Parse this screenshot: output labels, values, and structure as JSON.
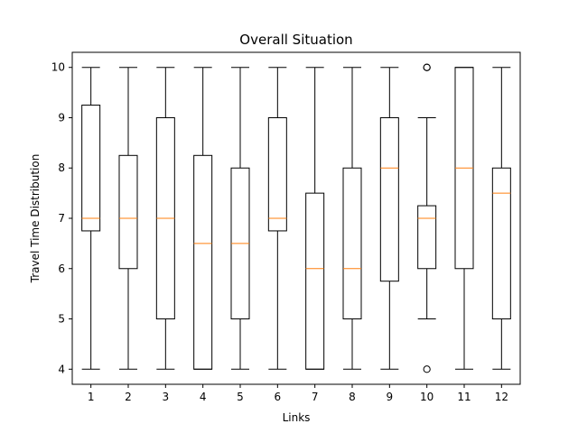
{
  "chart_data": {
    "type": "boxplot",
    "title": "Overall Situation",
    "xlabel": "Links",
    "ylabel": "Travel Time Distribution",
    "ylim": [
      3.7,
      10.3
    ],
    "yticks": [
      4,
      5,
      6,
      7,
      8,
      9,
      10
    ],
    "grid": false,
    "colors": {
      "box": "#000000",
      "median": "#ff7f0e",
      "axes": "#000000"
    },
    "categories": [
      "1",
      "2",
      "3",
      "4",
      "5",
      "6",
      "7",
      "8",
      "9",
      "10",
      "11",
      "12"
    ],
    "boxes": [
      {
        "label": "1",
        "whisker_low": 4,
        "q1": 6.75,
        "median": 7,
        "q3": 9.25,
        "whisker_high": 10,
        "fliers": []
      },
      {
        "label": "2",
        "whisker_low": 4,
        "q1": 6,
        "median": 7,
        "q3": 8.25,
        "whisker_high": 10,
        "fliers": []
      },
      {
        "label": "3",
        "whisker_low": 4,
        "q1": 5,
        "median": 7,
        "q3": 9,
        "whisker_high": 10,
        "fliers": []
      },
      {
        "label": "4",
        "whisker_low": 4,
        "q1": 4,
        "median": 6.5,
        "q3": 8.25,
        "whisker_high": 10,
        "fliers": []
      },
      {
        "label": "5",
        "whisker_low": 4,
        "q1": 5,
        "median": 6.5,
        "q3": 8,
        "whisker_high": 10,
        "fliers": []
      },
      {
        "label": "6",
        "whisker_low": 4,
        "q1": 6.75,
        "median": 7,
        "q3": 9,
        "whisker_high": 10,
        "fliers": []
      },
      {
        "label": "7",
        "whisker_low": 4,
        "q1": 4,
        "median": 6,
        "q3": 7.5,
        "whisker_high": 10,
        "fliers": []
      },
      {
        "label": "8",
        "whisker_low": 4,
        "q1": 5,
        "median": 6,
        "q3": 8,
        "whisker_high": 10,
        "fliers": []
      },
      {
        "label": "9",
        "whisker_low": 4,
        "q1": 5.75,
        "median": 8,
        "q3": 9,
        "whisker_high": 10,
        "fliers": []
      },
      {
        "label": "10",
        "whisker_low": 5,
        "q1": 6,
        "median": 7,
        "q3": 7.25,
        "whisker_high": 9,
        "fliers": [
          10,
          10,
          4
        ]
      },
      {
        "label": "11",
        "whisker_low": 4,
        "q1": 6,
        "median": 8,
        "q3": 10,
        "whisker_high": 10,
        "fliers": []
      },
      {
        "label": "12",
        "whisker_low": 4,
        "q1": 5,
        "median": 7.5,
        "q3": 8,
        "whisker_high": 10,
        "fliers": []
      }
    ]
  }
}
